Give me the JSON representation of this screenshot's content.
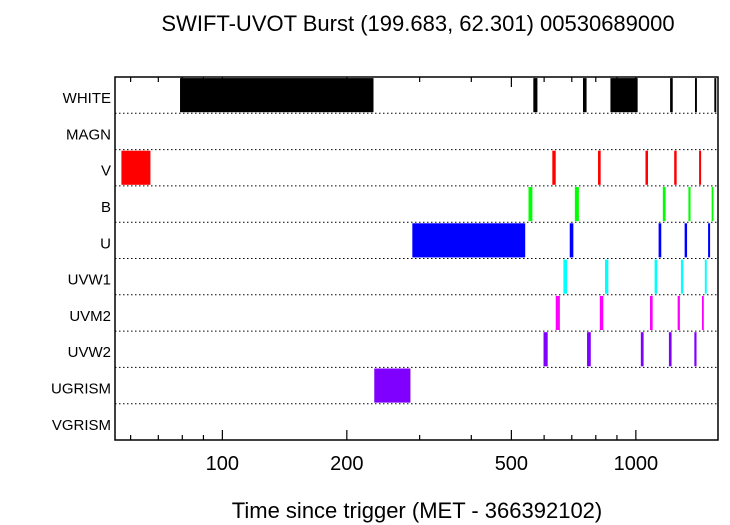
{
  "chart_data": {
    "type": "timeline",
    "title": "SWIFT-UVOT Burst (199.683, 62.301) 00530689000",
    "xlabel": "Time since trigger (MET - 366392102)",
    "x_scale": "log",
    "xlim": [
      55,
      1580
    ],
    "x_ticks": [
      100,
      200,
      500,
      1000
    ],
    "x_tick_labels": [
      "100",
      "200",
      "500",
      "1000"
    ],
    "grid": "dotted row separators",
    "filters": [
      "WHITE",
      "MAGN",
      "V",
      "B",
      "U",
      "UVW1",
      "UVM2",
      "UVW2",
      "UGRISM",
      "VGRISM"
    ],
    "exposures": [
      {
        "filter": "WHITE",
        "color": "#000000",
        "start": 79,
        "end": 232
      },
      {
        "filter": "WHITE",
        "color": "#000000",
        "start": 565,
        "end": 578
      },
      {
        "filter": "WHITE",
        "color": "#000000",
        "start": 745,
        "end": 760
      },
      {
        "filter": "WHITE",
        "color": "#000000",
        "start": 868,
        "end": 1010
      },
      {
        "filter": "WHITE",
        "color": "#000000",
        "start": 1210,
        "end": 1228
      },
      {
        "filter": "WHITE",
        "color": "#000000",
        "start": 1390,
        "end": 1405
      },
      {
        "filter": "WHITE",
        "color": "#000000",
        "start": 1548,
        "end": 1565
      },
      {
        "filter": "V",
        "color": "#ff0000",
        "start": 57,
        "end": 67
      },
      {
        "filter": "V",
        "color": "#ff0000",
        "start": 628,
        "end": 640
      },
      {
        "filter": "V",
        "color": "#ff0000",
        "start": 810,
        "end": 822
      },
      {
        "filter": "V",
        "color": "#ff0000",
        "start": 1055,
        "end": 1070
      },
      {
        "filter": "V",
        "color": "#ff0000",
        "start": 1238,
        "end": 1255
      },
      {
        "filter": "V",
        "color": "#ff0000",
        "start": 1422,
        "end": 1438
      },
      {
        "filter": "B",
        "color": "#00ff00",
        "start": 550,
        "end": 562
      },
      {
        "filter": "B",
        "color": "#00ff00",
        "start": 712,
        "end": 728
      },
      {
        "filter": "B",
        "color": "#00ff00",
        "start": 1162,
        "end": 1180
      },
      {
        "filter": "B",
        "color": "#00ff00",
        "start": 1340,
        "end": 1356
      },
      {
        "filter": "B",
        "color": "#00ff00",
        "start": 1525,
        "end": 1540
      },
      {
        "filter": "U",
        "color": "#0000ff",
        "start": 288,
        "end": 540
      },
      {
        "filter": "U",
        "color": "#0000ff",
        "start": 692,
        "end": 706
      },
      {
        "filter": "U",
        "color": "#0000ff",
        "start": 1135,
        "end": 1152
      },
      {
        "filter": "U",
        "color": "#0000ff",
        "start": 1312,
        "end": 1330
      },
      {
        "filter": "U",
        "color": "#0000ff",
        "start": 1495,
        "end": 1512
      },
      {
        "filter": "UVW1",
        "color": "#00ffff",
        "start": 668,
        "end": 682
      },
      {
        "filter": "UVW1",
        "color": "#00ffff",
        "start": 842,
        "end": 858
      },
      {
        "filter": "UVW1",
        "color": "#00ffff",
        "start": 1110,
        "end": 1126
      },
      {
        "filter": "UVW1",
        "color": "#00ffff",
        "start": 1285,
        "end": 1302
      },
      {
        "filter": "UVW1",
        "color": "#00ffff",
        "start": 1468,
        "end": 1484
      },
      {
        "filter": "UVM2",
        "color": "#ff00ff",
        "start": 640,
        "end": 655
      },
      {
        "filter": "UVM2",
        "color": "#ff00ff",
        "start": 818,
        "end": 834
      },
      {
        "filter": "UVM2",
        "color": "#ff00ff",
        "start": 1082,
        "end": 1098
      },
      {
        "filter": "UVM2",
        "color": "#ff00ff",
        "start": 1262,
        "end": 1278
      },
      {
        "filter": "UVM2",
        "color": "#ff00ff",
        "start": 1445,
        "end": 1460
      },
      {
        "filter": "UVW2",
        "color": "#8000ff",
        "start": 598,
        "end": 612
      },
      {
        "filter": "UVW2",
        "color": "#8000ff",
        "start": 762,
        "end": 778
      },
      {
        "filter": "UVW2",
        "color": "#8000ff",
        "start": 1028,
        "end": 1044
      },
      {
        "filter": "UVW2",
        "color": "#8000ff",
        "start": 1202,
        "end": 1220
      },
      {
        "filter": "UVW2",
        "color": "#8000ff",
        "start": 1385,
        "end": 1402
      },
      {
        "filter": "UGRISM",
        "color": "#8000ff",
        "start": 233,
        "end": 285
      }
    ]
  }
}
